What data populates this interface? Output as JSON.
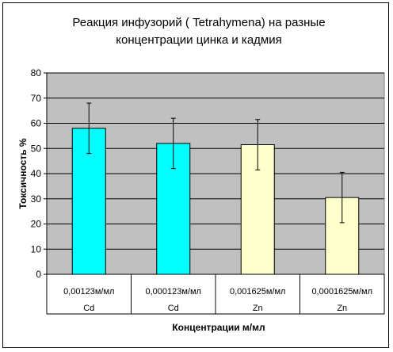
{
  "chart_data": {
    "type": "bar",
    "title_lines": [
      "Реакция инфузорий ( Tetrahymena) на разные",
      "концентрации  цинка и кадмия"
    ],
    "xlabel": "Концентрации м/мл",
    "ylabel": "Токсичность %",
    "ylim": [
      0,
      80
    ],
    "yticks": [
      0,
      10,
      20,
      30,
      40,
      50,
      60,
      70,
      80
    ],
    "grid": true,
    "legend": "none",
    "categories": [
      {
        "concentration": "0,00123м/мл",
        "element": "Cd"
      },
      {
        "concentration": "0,000123м/мл",
        "element": "Cd"
      },
      {
        "concentration": "0,001625м/мл",
        "element": "Zn"
      },
      {
        "concentration": "0,0001625м/мл",
        "element": "Zn"
      }
    ],
    "values": [
      58,
      52,
      51.5,
      30.5
    ],
    "errors": [
      10,
      10,
      10,
      10
    ],
    "bar_colors": [
      "#00ffff",
      "#00ffff",
      "#ffffcc",
      "#ffffcc"
    ],
    "plot_background": "#c0c0c0"
  }
}
